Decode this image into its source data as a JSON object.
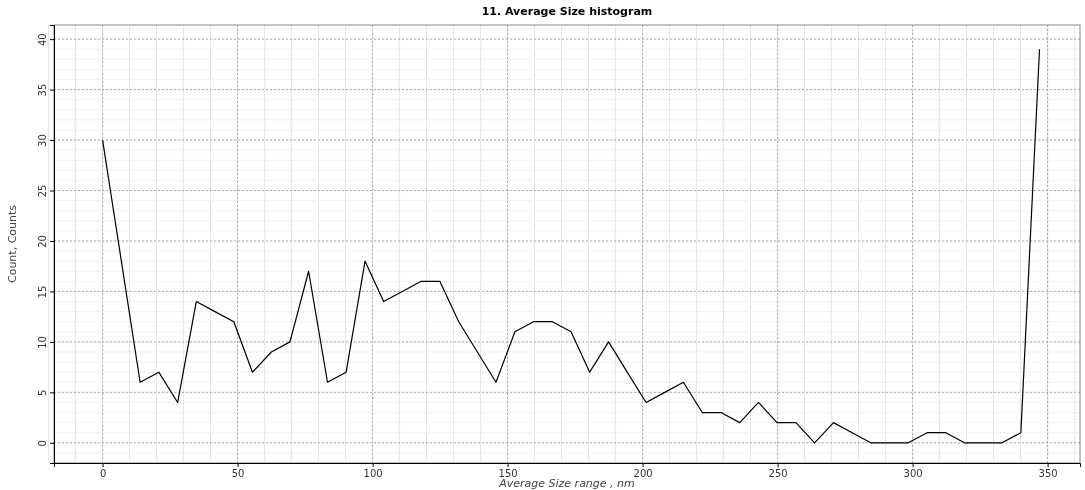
{
  "chart_data": {
    "type": "line",
    "title": "11.  Average Size histogram",
    "xlabel": "Average Size range , nm",
    "ylabel": "Count, Counts",
    "x": [
      0,
      13.9,
      20.8,
      27.8,
      34.7,
      41.6,
      48.6,
      55.5,
      62.5,
      69.4,
      76.3,
      83.3,
      90.2,
      97.2,
      104.1,
      111.0,
      118.0,
      124.9,
      131.9,
      138.8,
      145.7,
      152.7,
      159.6,
      166.6,
      173.5,
      180.4,
      187.4,
      194.3,
      201.3,
      208.2,
      215.1,
      222.1,
      229.0,
      236.0,
      242.9,
      249.8,
      256.8,
      263.7,
      270.7,
      277.6,
      284.5,
      291.5,
      298.4,
      305.4,
      312.3,
      319.2,
      326.2,
      333.1,
      340.1,
      347.0
    ],
    "series": [
      {
        "color": "#000000",
        "values": [
          30,
          6,
          7,
          4,
          14,
          13,
          12,
          7,
          9,
          10,
          17,
          6,
          7,
          18,
          14,
          15,
          16,
          16,
          12,
          9,
          6,
          11,
          12,
          12,
          11,
          7,
          10,
          7,
          4,
          5,
          6,
          3,
          3,
          2,
          4,
          2,
          2,
          0,
          2,
          1,
          0,
          0,
          0,
          1,
          1,
          0,
          0,
          0,
          1,
          39
        ]
      }
    ],
    "xlim": [
      -18,
      362
    ],
    "xticks": [
      0,
      50,
      100,
      150,
      200,
      250,
      300,
      350
    ],
    "ylim": [
      -2,
      41.4
    ],
    "yticks": [
      0,
      5,
      10,
      15,
      20,
      25,
      30,
      35,
      40
    ],
    "grid": true,
    "marker": "none",
    "line_style": "solid"
  }
}
